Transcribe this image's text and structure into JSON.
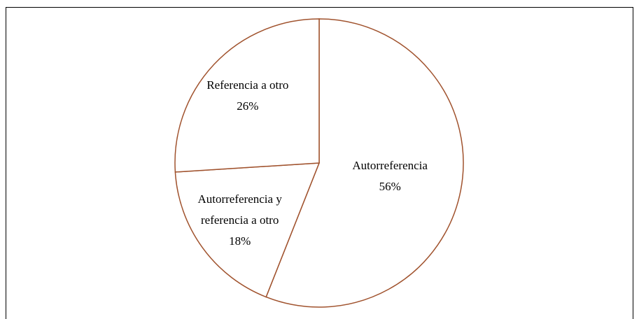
{
  "chart_data": {
    "type": "pie",
    "categories": [
      "Autorreferencia",
      "Autorreferencia y referencia a otro",
      "Referencia a otro"
    ],
    "values": [
      56,
      18,
      26
    ],
    "value_labels": [
      "56%",
      "18%",
      "26%"
    ],
    "color": "#a0522d"
  }
}
